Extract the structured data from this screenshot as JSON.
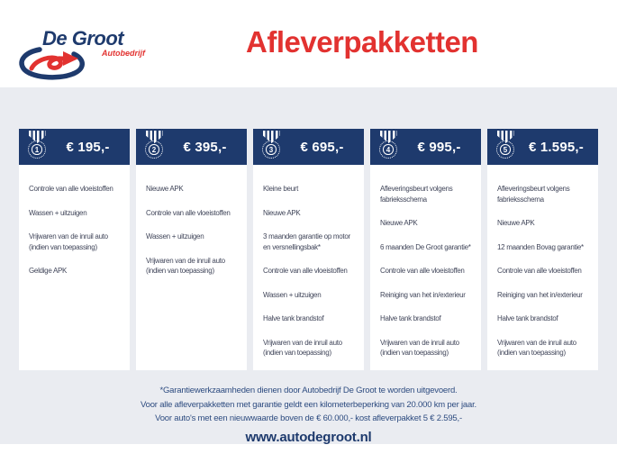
{
  "logo": {
    "name": "De Groot",
    "subtitle": "Autobedrijf"
  },
  "title": "Afleverpakketten",
  "packages": [
    {
      "number": "1",
      "price": "€ 195,-",
      "features": [
        "Controle van alle vloeistoffen",
        "Wassen + uitzuigen",
        "Vrijwaren van de inruil auto (indien van toepassing)",
        "Geldige APK"
      ]
    },
    {
      "number": "2",
      "price": "€ 395,-",
      "features": [
        "Nieuwe APK",
        "Controle van alle vloeistoffen",
        "Wassen + uitzuigen",
        "Vrijwaren van de inruil auto (indien van toepassing)"
      ]
    },
    {
      "number": "3",
      "price": "€ 695,-",
      "features": [
        "Kleine beurt",
        "Nieuwe APK",
        "3 maanden garantie op motor en versnellingsbak*",
        "Controle van alle vloeistoffen",
        "Wassen + uitzuigen",
        "Halve tank brandstof",
        "Vrijwaren van de inruil auto (indien van toepassing)"
      ]
    },
    {
      "number": "4",
      "price": "€ 995,-",
      "features": [
        "Afleveringsbeurt volgens fabrieksschema",
        "Nieuwe APK",
        "6 maanden De Groot garantie*",
        "Controle van alle vloeistoffen",
        "Reiniging van het in/exterieur",
        "Halve tank brandstof",
        "Vrijwaren van de inruil auto (indien van toepassing)"
      ]
    },
    {
      "number": "5",
      "price": "€ 1.595,-",
      "features": [
        "Afleveringsbeurt volgens fabrieksschema",
        "Nieuwe APK",
        "12 maanden Bovag garantie*",
        "Controle van alle vloeistoffen",
        "Reiniging van het in/exterieur",
        "Halve tank brandstof",
        "Vrijwaren van de inruil auto (indien van toepassing)"
      ]
    }
  ],
  "footer": {
    "disclaimer_lines": [
      "*Garantiewerkzaamheden dienen door Autobedrijf De Groot te worden uitgevoerd.",
      "Voor alle afleverpakketten met garantie geldt een kilometerbeperking van 20.000 km per jaar.",
      "Voor auto's met een nieuwwaarde boven de € 60.000,- kost afleverpakket 5 € 2.595,-"
    ],
    "website": "www.autodegroot.nl"
  },
  "colors": {
    "navy": "#1e3a6d",
    "red": "#e23230",
    "background_gray": "#eaecf1",
    "feature_text": "#41465a",
    "disclaimer_text": "#2e4c80"
  }
}
